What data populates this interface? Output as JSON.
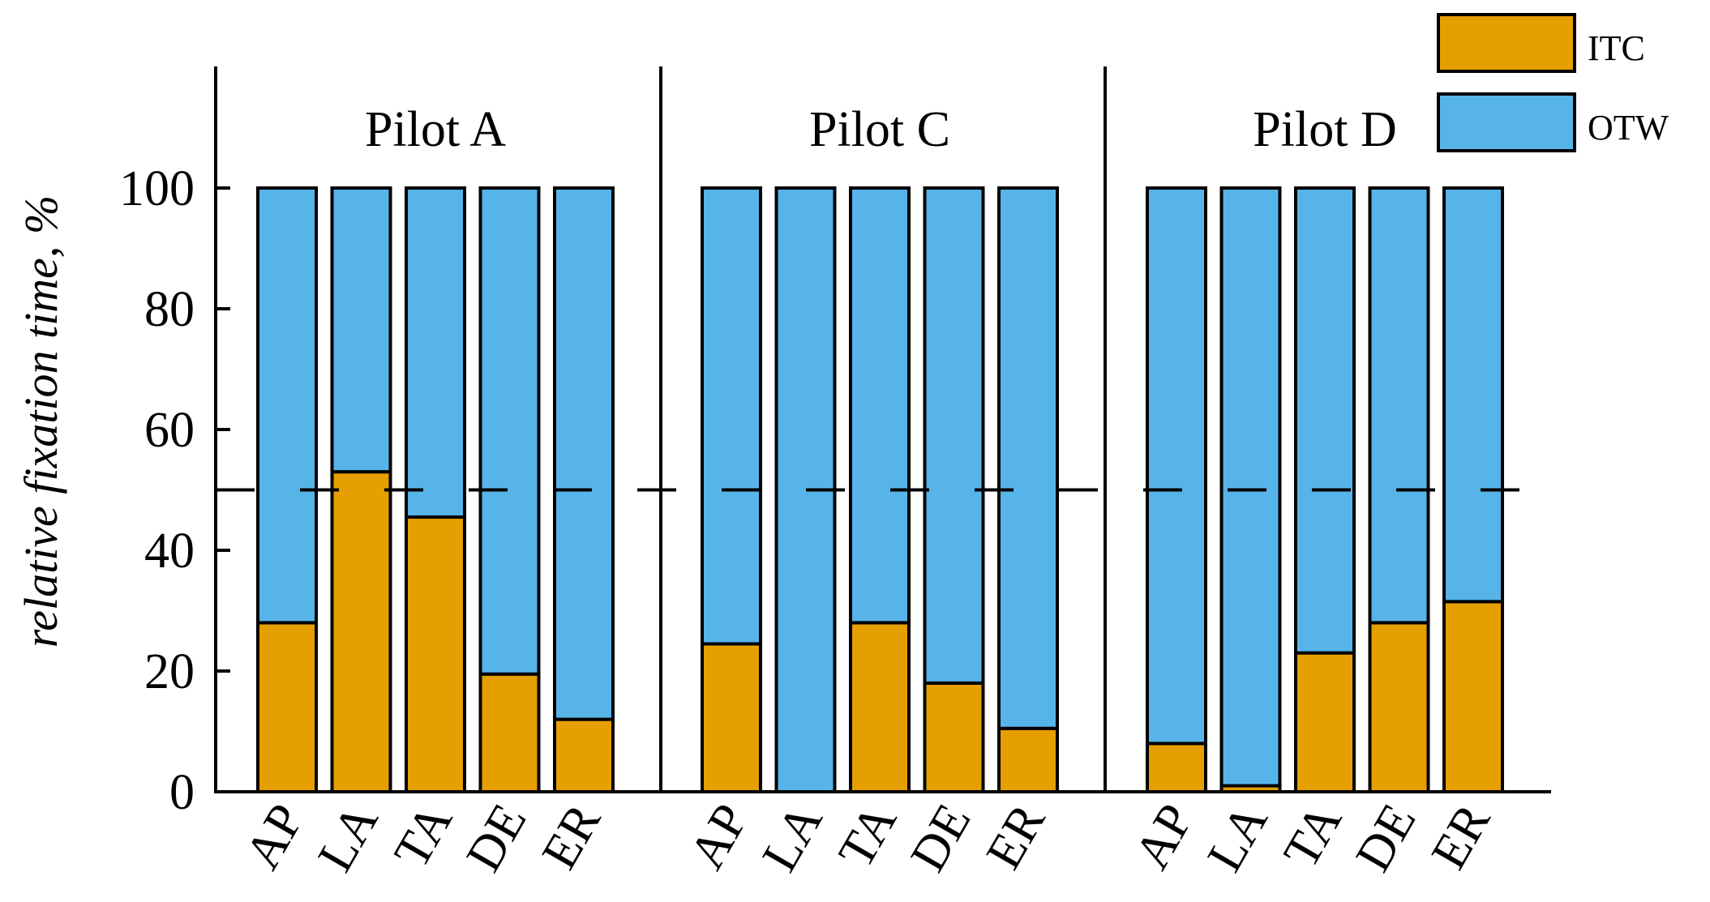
{
  "chart_data": {
    "type": "bar",
    "stacked": true,
    "ylabel": "relative fixation time, %",
    "ylim": [
      0,
      120
    ],
    "yticks": [
      "0",
      "20",
      "40",
      "60",
      "80",
      "100"
    ],
    "reference_line": {
      "value": 50,
      "style": "dashed"
    },
    "legend": {
      "placement": "top-right",
      "entries": [
        {
          "name": "ITC",
          "color": "#E69F00"
        },
        {
          "name": "OTW",
          "color": "#56B4E9"
        }
      ]
    },
    "groups": [
      {
        "name": "Pilot A",
        "categories": [
          "AP",
          "LA",
          "TA",
          "DE",
          "ER"
        ],
        "series": [
          {
            "name": "ITC",
            "values": [
              28,
              53,
              45.5,
              19.5,
              12
            ]
          },
          {
            "name": "OTW",
            "values": [
              72,
              47,
              54.5,
              80.5,
              88
            ]
          }
        ]
      },
      {
        "name": "Pilot C",
        "categories": [
          "AP",
          "LA",
          "TA",
          "DE",
          "ER"
        ],
        "series": [
          {
            "name": "ITC",
            "values": [
              24.5,
              0,
              28,
              18,
              10.5
            ]
          },
          {
            "name": "OTW",
            "values": [
              75.5,
              100,
              72,
              82,
              89.5
            ]
          }
        ]
      },
      {
        "name": "Pilot D",
        "categories": [
          "AP",
          "LA",
          "TA",
          "DE",
          "ER"
        ],
        "series": [
          {
            "name": "ITC",
            "values": [
              8,
              1,
              23,
              28,
              31.5
            ]
          },
          {
            "name": "OTW",
            "values": [
              92,
              99,
              77,
              72,
              68.5
            ]
          }
        ]
      }
    ]
  }
}
